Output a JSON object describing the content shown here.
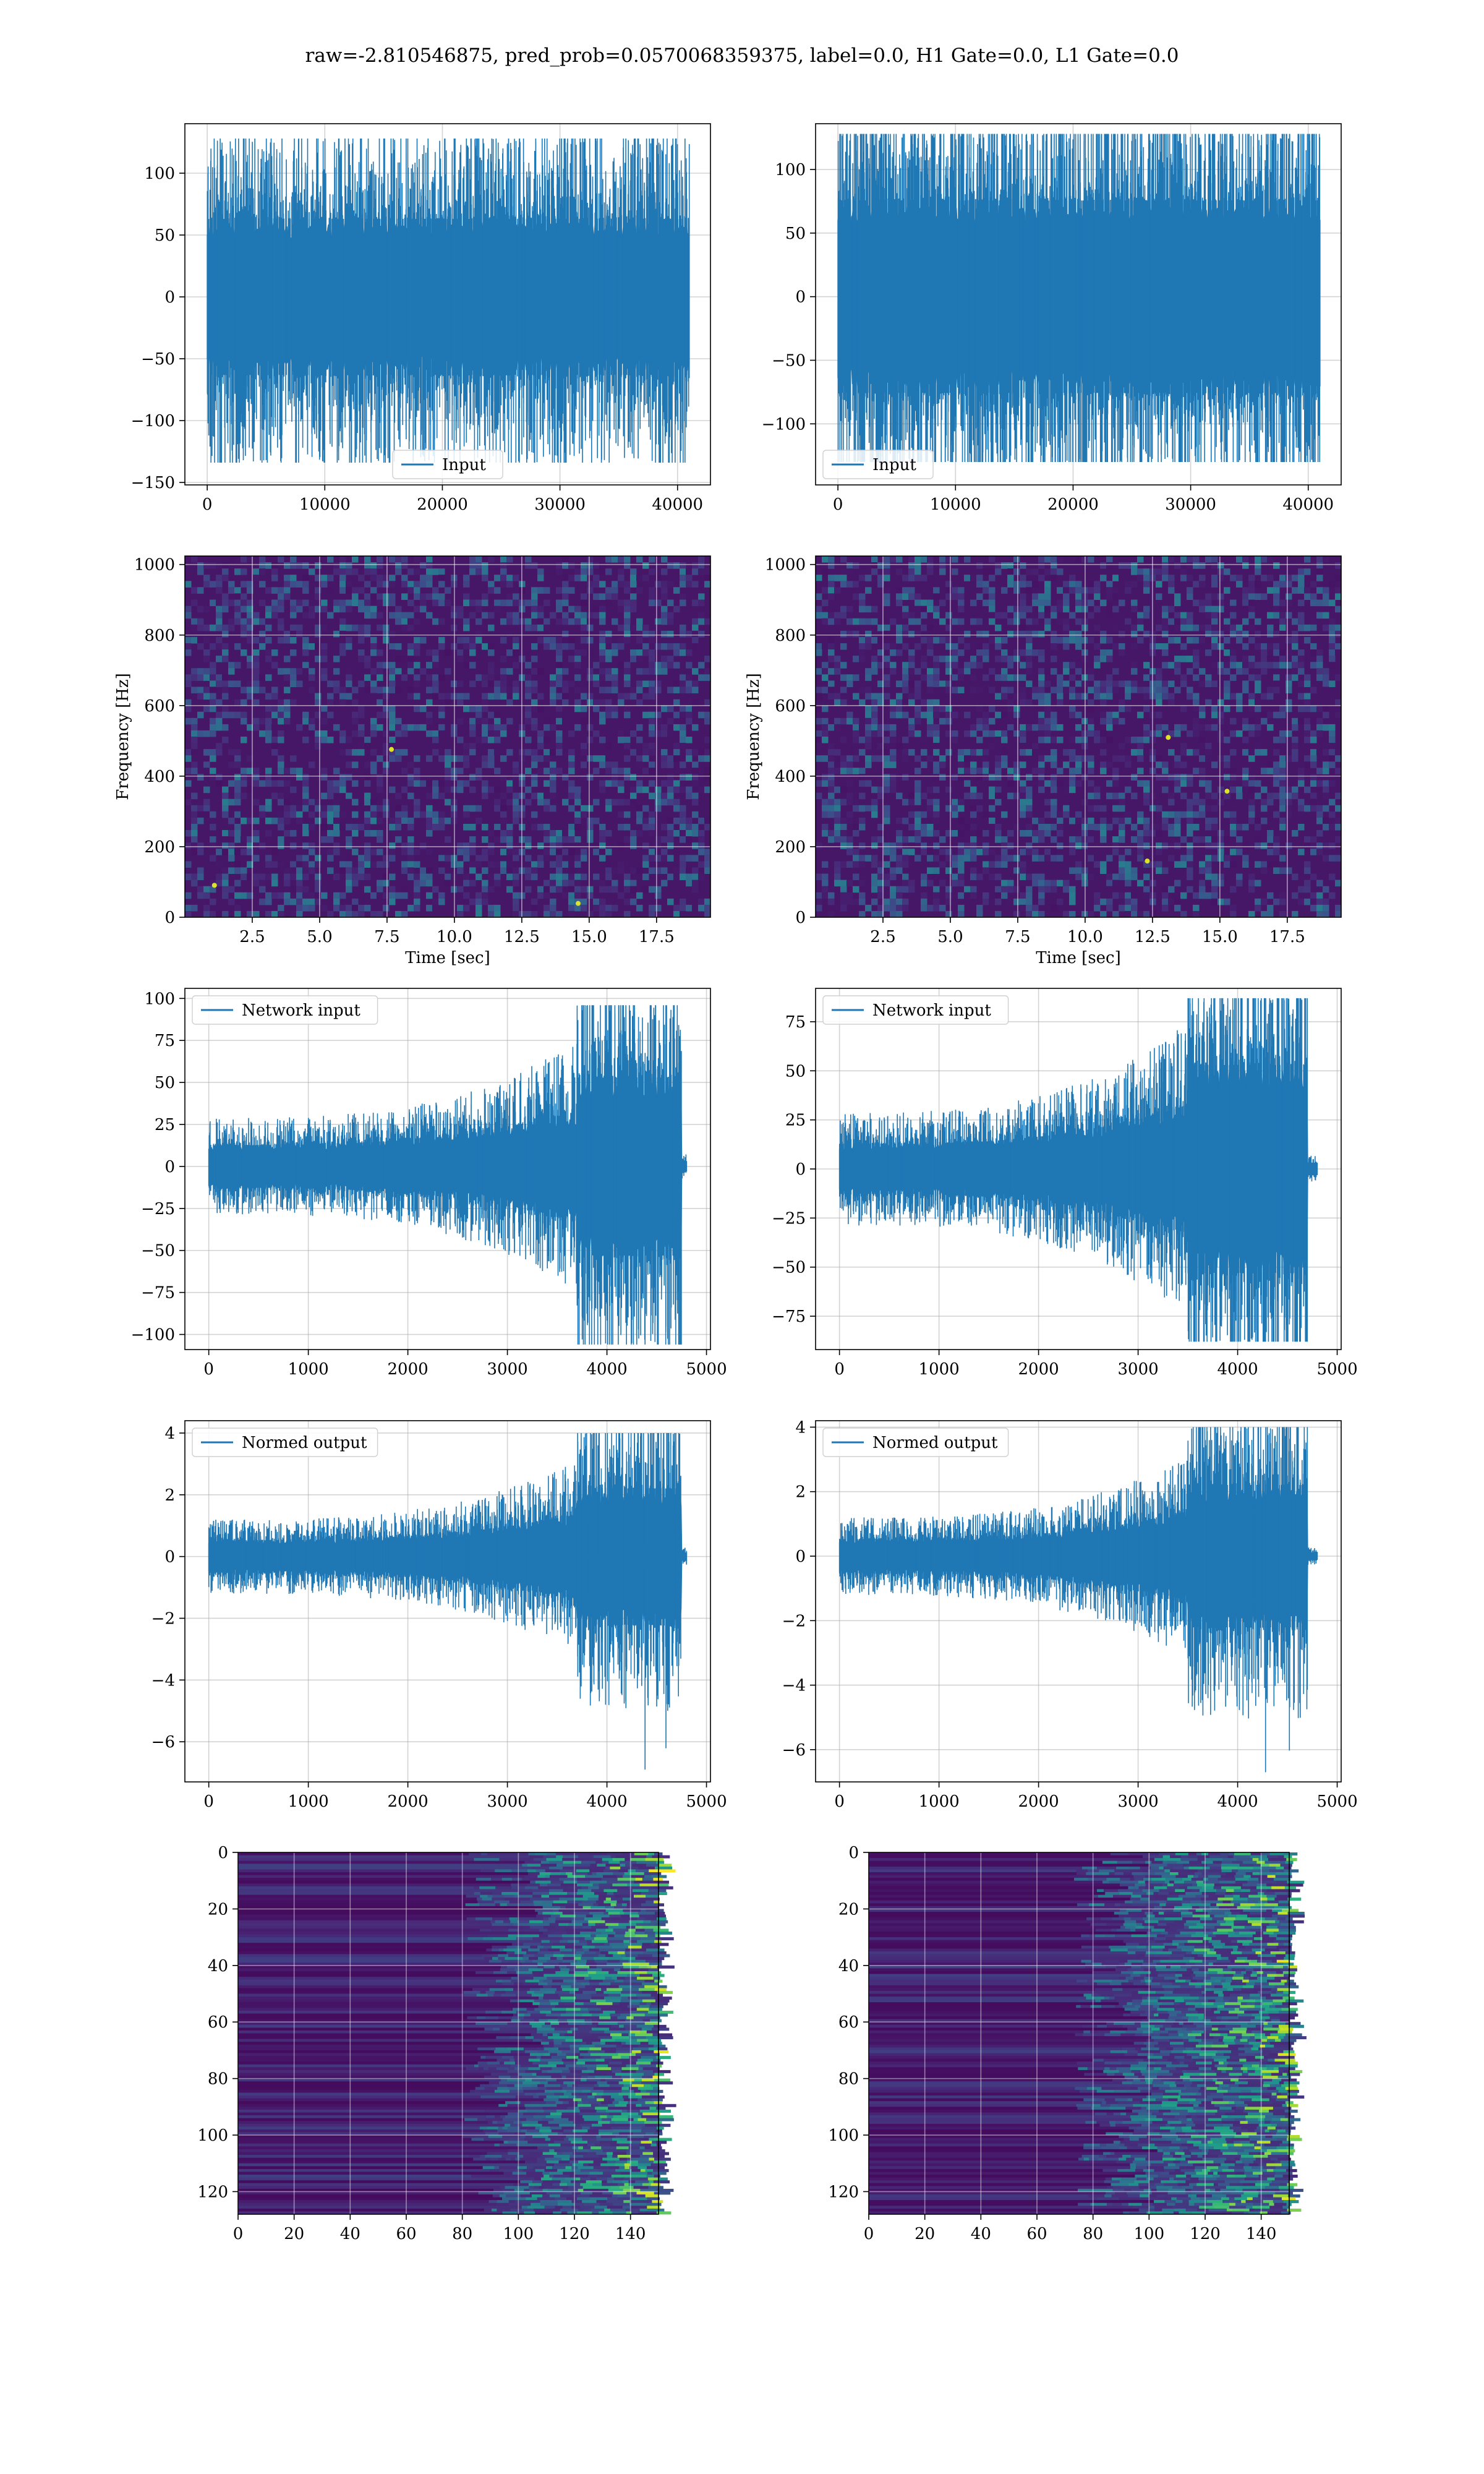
{
  "figure": {
    "title": "raw=-2.810546875, pred_prob=0.0570068359375, label=0.0, H1 Gate=0.0, L1 Gate=0.0"
  },
  "colors": {
    "line": "#1f77b4",
    "grid": "#b0b0b0",
    "viridis_dark": "#440154",
    "viridis_mid": "#21918c",
    "viridis_bright": "#fde725"
  },
  "chart_data": [
    {
      "id": "input-h1",
      "type": "line",
      "series": [
        {
          "name": "Input"
        }
      ],
      "legend": "lower-center",
      "x": {
        "range": [
          -1900,
          42800
        ],
        "ticks": [
          0,
          10000,
          20000,
          30000,
          40000
        ]
      },
      "y": {
        "range": [
          -152,
          140
        ],
        "ticks": [
          -150,
          -100,
          -50,
          0,
          50,
          100
        ]
      },
      "signal": {
        "x_start": 0,
        "x_end": 41000,
        "core_amplitude": 60,
        "peak_max": 128,
        "peak_min": -134
      },
      "grid": true
    },
    {
      "id": "input-l1",
      "type": "line",
      "series": [
        {
          "name": "Input"
        }
      ],
      "legend": "lower-left",
      "x": {
        "range": [
          -1900,
          42800
        ],
        "ticks": [
          0,
          10000,
          20000,
          30000,
          40000
        ]
      },
      "y": {
        "range": [
          -148,
          136
        ],
        "ticks": [
          -100,
          -50,
          0,
          50,
          100
        ]
      },
      "signal": {
        "x_start": 0,
        "x_end": 41000,
        "core_amplitude": 72,
        "peak_max": 128,
        "peak_min": -130
      },
      "grid": true
    },
    {
      "id": "spectrogram-h1",
      "type": "heatmap",
      "xlabel": "Time [sec]",
      "ylabel": "Frequency [Hz]",
      "x": {
        "range": [
          0,
          19.5
        ],
        "ticks": [
          2.5,
          5.0,
          7.5,
          10.0,
          12.5,
          15.0,
          17.5
        ]
      },
      "y": {
        "range": [
          0,
          1024
        ],
        "ticks": [
          0,
          200,
          400,
          600,
          800,
          1000
        ]
      },
      "grid": true
    },
    {
      "id": "spectrogram-l1",
      "type": "heatmap",
      "xlabel": "Time [sec]",
      "ylabel": "Frequency [Hz]",
      "x": {
        "range": [
          0,
          19.5
        ],
        "ticks": [
          2.5,
          5.0,
          7.5,
          10.0,
          12.5,
          15.0,
          17.5
        ]
      },
      "y": {
        "range": [
          0,
          1024
        ],
        "ticks": [
          0,
          200,
          400,
          600,
          800,
          1000
        ]
      },
      "grid": true
    },
    {
      "id": "network-input-h1",
      "type": "line",
      "series": [
        {
          "name": "Network input"
        }
      ],
      "legend": "top-left",
      "x": {
        "range": [
          -240,
          5040
        ],
        "ticks": [
          0,
          1000,
          2000,
          3000,
          4000,
          5000
        ]
      },
      "y": {
        "range": [
          -109,
          106
        ],
        "ticks": [
          -100,
          -75,
          -50,
          -25,
          0,
          25,
          50,
          75,
          100
        ]
      },
      "signal": {
        "x_start": 0,
        "x_end": 4800,
        "burst_start": 3700,
        "burst_end": 4750,
        "core_amplitude": 12,
        "peak_max": 96,
        "peak_min": -106
      },
      "grid": true
    },
    {
      "id": "network-input-l1",
      "type": "line",
      "series": [
        {
          "name": "Network input"
        }
      ],
      "legend": "top-left",
      "x": {
        "range": [
          -240,
          5040
        ],
        "ticks": [
          0,
          1000,
          2000,
          3000,
          4000,
          5000
        ]
      },
      "y": {
        "range": [
          -92,
          92
        ],
        "ticks": [
          -75,
          -50,
          -25,
          0,
          25,
          50,
          75
        ]
      },
      "signal": {
        "x_start": 0,
        "x_end": 4800,
        "burst_start": 3500,
        "burst_end": 4700,
        "core_amplitude": 12,
        "peak_max": 87,
        "peak_min": -88
      },
      "grid": true
    },
    {
      "id": "normed-output-h1",
      "type": "line",
      "series": [
        {
          "name": "Normed output"
        }
      ],
      "legend": "top-left",
      "x": {
        "range": [
          -240,
          5040
        ],
        "ticks": [
          0,
          1000,
          2000,
          3000,
          4000,
          5000
        ]
      },
      "y": {
        "range": [
          -7.3,
          4.4
        ],
        "ticks": [
          -6,
          -4,
          -2,
          0,
          2,
          4
        ]
      },
      "signal": {
        "x_start": 0,
        "x_end": 4800,
        "burst_start": 3700,
        "burst_end": 4750,
        "core_amplitude": 0.5,
        "peak_max": 4.0,
        "peak_min": -6.9
      },
      "grid": true
    },
    {
      "id": "normed-output-l1",
      "type": "line",
      "series": [
        {
          "name": "Normed output"
        }
      ],
      "legend": "top-left",
      "x": {
        "range": [
          -240,
          5040
        ],
        "ticks": [
          0,
          1000,
          2000,
          3000,
          4000,
          5000
        ]
      },
      "y": {
        "range": [
          -7.0,
          4.2
        ],
        "ticks": [
          -6,
          -4,
          -2,
          0,
          2,
          4
        ]
      },
      "signal": {
        "x_start": 0,
        "x_end": 4800,
        "burst_start": 3500,
        "burst_end": 4700,
        "core_amplitude": 0.5,
        "peak_max": 4.0,
        "peak_min": -6.7
      },
      "grid": true
    },
    {
      "id": "feature-map-h1",
      "type": "heatmap",
      "x": {
        "range": [
          0,
          150
        ],
        "ticks": [
          0,
          20,
          40,
          60,
          80,
          100,
          120,
          140
        ]
      },
      "y": {
        "range": [
          0,
          128
        ],
        "ticks": [
          0,
          20,
          40,
          60,
          80,
          100,
          120
        ],
        "inverted": true
      },
      "activity_onset": 95,
      "grid": true
    },
    {
      "id": "feature-map-l1",
      "type": "heatmap",
      "x": {
        "range": [
          0,
          150
        ],
        "ticks": [
          0,
          20,
          40,
          60,
          80,
          100,
          120,
          140
        ]
      },
      "y": {
        "range": [
          0,
          128
        ],
        "ticks": [
          0,
          20,
          40,
          60,
          80,
          100,
          120
        ],
        "inverted": true
      },
      "activity_onset": 88,
      "grid": true
    }
  ]
}
